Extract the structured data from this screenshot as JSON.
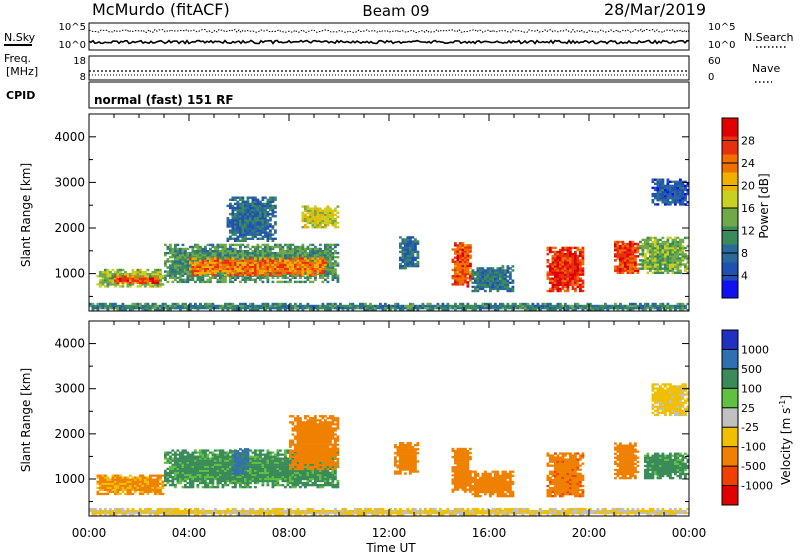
{
  "header": {
    "station": "McMurdo (fitACF)",
    "beam": "Beam 09",
    "date": "28/Mar/2019"
  },
  "strips": {
    "nsky_label": "N.Sky",
    "nsky_ticks": [
      "10^5",
      "10^0"
    ],
    "nsearch_label": "N.Search",
    "nsearch_ticks": [
      "10^5",
      "10^0"
    ],
    "freq_label_1": "Freq.",
    "freq_label_2": "[MHz]",
    "freq_ticks": [
      "18",
      "8"
    ],
    "nave_label": "Nave",
    "nave_ticks": [
      "60",
      "0"
    ],
    "cpid_label": "CPID",
    "cpid_text": "normal (fast) 151 RF"
  },
  "chart_data": [
    {
      "type": "heatmap",
      "title": "",
      "xlabel": "",
      "ylabel": "Slant Range [km]",
      "xlim": [
        0,
        24
      ],
      "ylim": [
        180,
        4500
      ],
      "x_tick_labels": [
        "00:00",
        "04:00",
        "08:00",
        "12:00",
        "16:00",
        "20:00",
        "00:00"
      ],
      "y_tick_labels": [
        "1000",
        "2000",
        "3000",
        "4000"
      ],
      "y_ticks": [
        1000,
        2000,
        3000,
        4000
      ],
      "colorbar": {
        "label": "Power [dB]",
        "ticks": [
          "4",
          "8",
          "12",
          "16",
          "20",
          "24",
          "28"
        ],
        "range": [
          0,
          32
        ],
        "colors": [
          "#1010f0",
          "#2050b0",
          "#2a6a9a",
          "#3a8a5a",
          "#70a84a",
          "#c8d020",
          "#f0b000",
          "#f07000",
          "#e83010",
          "#e00000"
        ]
      },
      "regions": [
        {
          "t0": 0.3,
          "t1": 3.0,
          "r0": 700,
          "r1": 1100,
          "v": 16
        },
        {
          "t0": 1.0,
          "t1": 2.8,
          "r0": 780,
          "r1": 980,
          "v": 26
        },
        {
          "t0": 3.0,
          "t1": 10.0,
          "r0": 800,
          "r1": 1650,
          "v": 12
        },
        {
          "t0": 4.0,
          "t1": 9.5,
          "r0": 950,
          "r1": 1350,
          "v": 24
        },
        {
          "t0": 5.5,
          "t1": 7.5,
          "r0": 1700,
          "r1": 2700,
          "v": 8
        },
        {
          "t0": 8.5,
          "t1": 10.0,
          "r0": 2000,
          "r1": 2500,
          "v": 18
        },
        {
          "t0": 12.4,
          "t1": 13.2,
          "r0": 1100,
          "r1": 1800,
          "v": 8
        },
        {
          "t0": 14.5,
          "t1": 15.3,
          "r0": 700,
          "r1": 1700,
          "v": 26
        },
        {
          "t0": 15.3,
          "t1": 17.0,
          "r0": 600,
          "r1": 1200,
          "v": 9
        },
        {
          "t0": 18.3,
          "t1": 19.8,
          "r0": 600,
          "r1": 1600,
          "v": 28
        },
        {
          "t0": 21.0,
          "t1": 22.0,
          "r0": 1000,
          "r1": 1700,
          "v": 27
        },
        {
          "t0": 22.0,
          "t1": 24.0,
          "r0": 1000,
          "r1": 1800,
          "v": 14
        },
        {
          "t0": 22.5,
          "t1": 24.0,
          "r0": 2500,
          "r1": 3100,
          "v": 6
        },
        {
          "t0": 0.0,
          "t1": 24.0,
          "r0": 180,
          "r1": 380,
          "v": 10
        }
      ]
    },
    {
      "type": "heatmap",
      "title": "",
      "xlabel": "Time UT",
      "ylabel": "Slant Range [km]",
      "xlim": [
        0,
        24
      ],
      "ylim": [
        180,
        4500
      ],
      "x_tick_labels": [
        "00:00",
        "04:00",
        "08:00",
        "12:00",
        "16:00",
        "20:00",
        "00:00"
      ],
      "y_tick_labels": [
        "1000",
        "2000",
        "3000",
        "4000"
      ],
      "y_ticks": [
        1000,
        2000,
        3000,
        4000
      ],
      "colorbar": {
        "label": "Velocity [m s^-1]",
        "ticks": [
          "1000",
          "500",
          "100",
          "25",
          "-25",
          "-100",
          "-500",
          "-1000"
        ],
        "colors": [
          "#2030c0",
          "#3070b0",
          "#3a8a5a",
          "#60c040",
          "#c0c0c0",
          "#f0c000",
          "#f08000",
          "#f04000",
          "#e00000"
        ]
      },
      "regions": [
        {
          "t0": 0.3,
          "t1": 3.0,
          "r0": 650,
          "r1": 1100,
          "v": -120
        },
        {
          "t0": 3.0,
          "t1": 10.0,
          "r0": 800,
          "r1": 1650,
          "v": 130
        },
        {
          "t0": 5.7,
          "t1": 6.4,
          "r0": 1100,
          "r1": 1700,
          "v": 600
        },
        {
          "t0": 8.0,
          "t1": 10.0,
          "r0": 1200,
          "r1": 2400,
          "v": -300
        },
        {
          "t0": 12.2,
          "t1": 13.2,
          "r0": 1100,
          "r1": 1800,
          "v": -300
        },
        {
          "t0": 14.5,
          "t1": 15.3,
          "r0": 700,
          "r1": 1700,
          "v": -300
        },
        {
          "t0": 15.3,
          "t1": 17.0,
          "r0": 600,
          "r1": 1200,
          "v": -200
        },
        {
          "t0": 18.3,
          "t1": 19.8,
          "r0": 600,
          "r1": 1600,
          "v": -400
        },
        {
          "t0": 21.0,
          "t1": 22.0,
          "r0": 1000,
          "r1": 1800,
          "v": -300
        },
        {
          "t0": 22.2,
          "t1": 24.0,
          "r0": 1000,
          "r1": 1600,
          "v": 150
        },
        {
          "t0": 22.5,
          "t1": 24.0,
          "r0": 2400,
          "r1": 3100,
          "v": -50
        },
        {
          "t0": 0.0,
          "t1": 24.0,
          "r0": 180,
          "r1": 350,
          "v": -30
        }
      ]
    }
  ]
}
